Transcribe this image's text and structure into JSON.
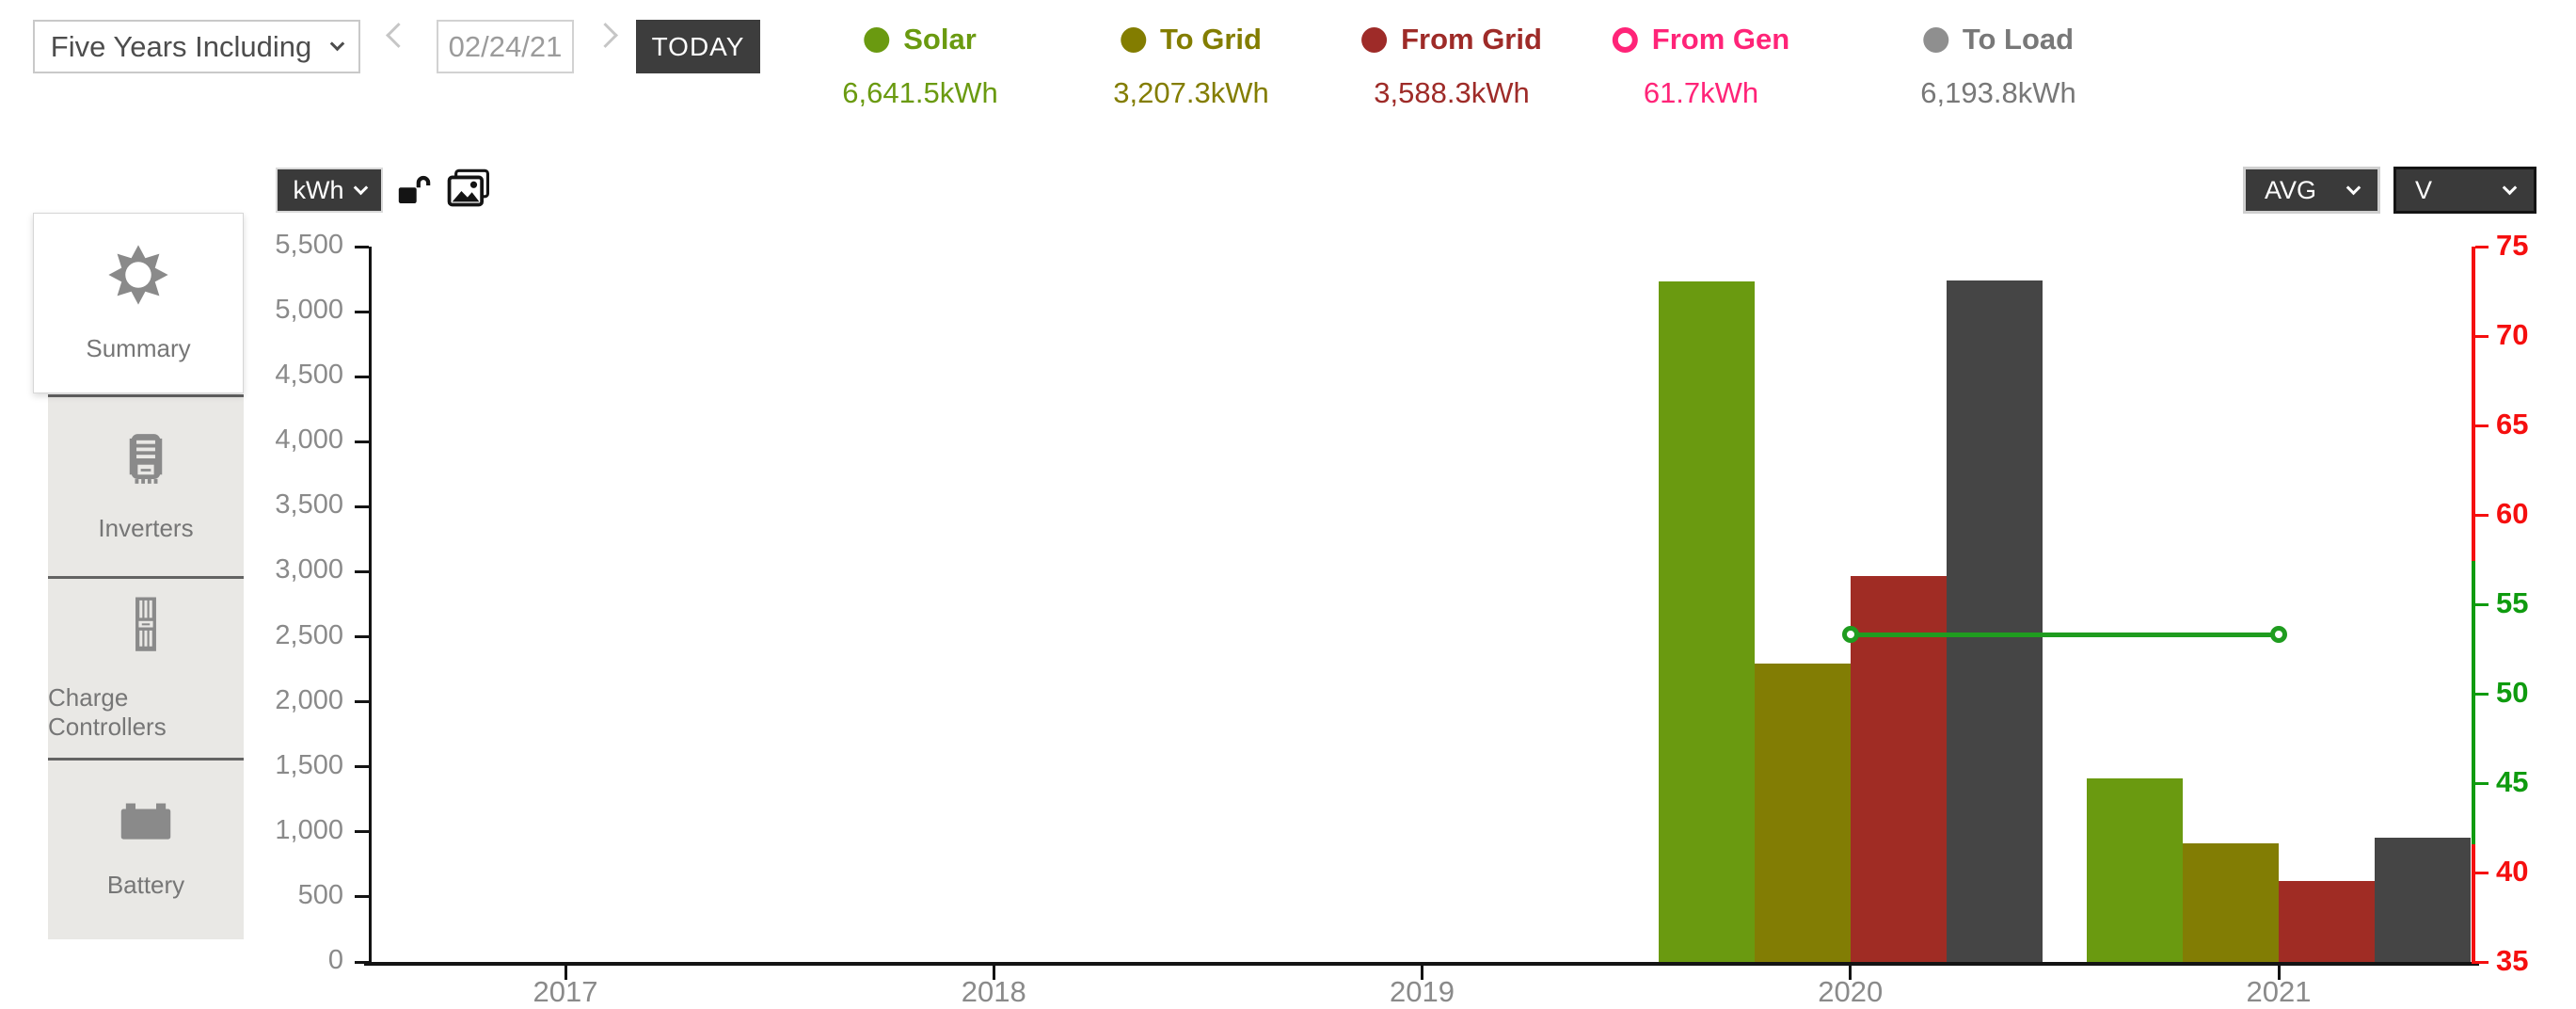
{
  "toolbar": {
    "range_label": "Five Years Including",
    "date_value": "02/24/21",
    "today_label": "TODAY"
  },
  "legend": [
    {
      "label": "Solar",
      "value": "6,641.5kWh",
      "color": "#6a9a10",
      "style": "filled"
    },
    {
      "label": "To Grid",
      "value": "3,207.3kWh",
      "color": "#837d00",
      "style": "filled"
    },
    {
      "label": "From Grid",
      "value": "3,588.3kWh",
      "color": "#9e2b28",
      "style": "filled"
    },
    {
      "label": "From Gen",
      "value": "61.7kWh",
      "color": "#ff2478",
      "style": "ring"
    },
    {
      "label": "To Load",
      "value": "6,193.8kWh",
      "color": "#8f8f8f",
      "style": "filled",
      "text_color": "#787878"
    }
  ],
  "chart_controls": {
    "unit_label": "kWh",
    "avg_label": "AVG",
    "volt_label": "V"
  },
  "sidebar": {
    "items": [
      {
        "label": "Summary",
        "icon": "sun-icon",
        "selected": true
      },
      {
        "label": "Inverters",
        "icon": "inverter-icon",
        "selected": false
      },
      {
        "label": "Charge Controllers",
        "icon": "charge-controller-icon",
        "selected": false
      },
      {
        "label": "Battery",
        "icon": "battery-icon",
        "selected": false
      }
    ]
  },
  "icons": {
    "prev": "chevron-left",
    "next": "chevron-right",
    "dropdown": "chevron-down",
    "lock": "unlocked-padlock",
    "snapshot": "image-stack"
  },
  "chart_data": {
    "type": "bar",
    "categories": [
      "2017",
      "2018",
      "2019",
      "2020",
      "2021"
    ],
    "series": [
      {
        "name": "Solar",
        "color": "#6a9a10",
        "values": [
          null,
          null,
          null,
          5230,
          1411
        ]
      },
      {
        "name": "To Grid",
        "color": "#827d04",
        "values": [
          null,
          null,
          null,
          2295,
          912
        ]
      },
      {
        "name": "From Grid",
        "color": "#a02c24",
        "values": [
          null,
          null,
          null,
          2965,
          623
        ]
      },
      {
        "name": "To Load",
        "color": "#454545",
        "values": [
          null,
          null,
          null,
          5240,
          954
        ]
      }
    ],
    "line_series": [
      {
        "name": "AVG V",
        "color": "#1f9c1f",
        "axis": "right",
        "values": [
          null,
          null,
          null,
          53.3,
          53.3
        ]
      }
    ],
    "left_axis": {
      "label": "kWh",
      "min": 0,
      "max": 5500,
      "tick_step": 500,
      "label_color": "#8a8a8a"
    },
    "right_axis": {
      "label": "V",
      "min": 35,
      "max": 75,
      "tick_step": 5,
      "red_color": "#f50f0f",
      "green_color": "#0f9b0f",
      "green_band": [
        41.6,
        57.4
      ]
    },
    "axis_color": "#141414",
    "x_label_color": "#8a8a8a",
    "grid": false,
    "legend_position": "top"
  }
}
